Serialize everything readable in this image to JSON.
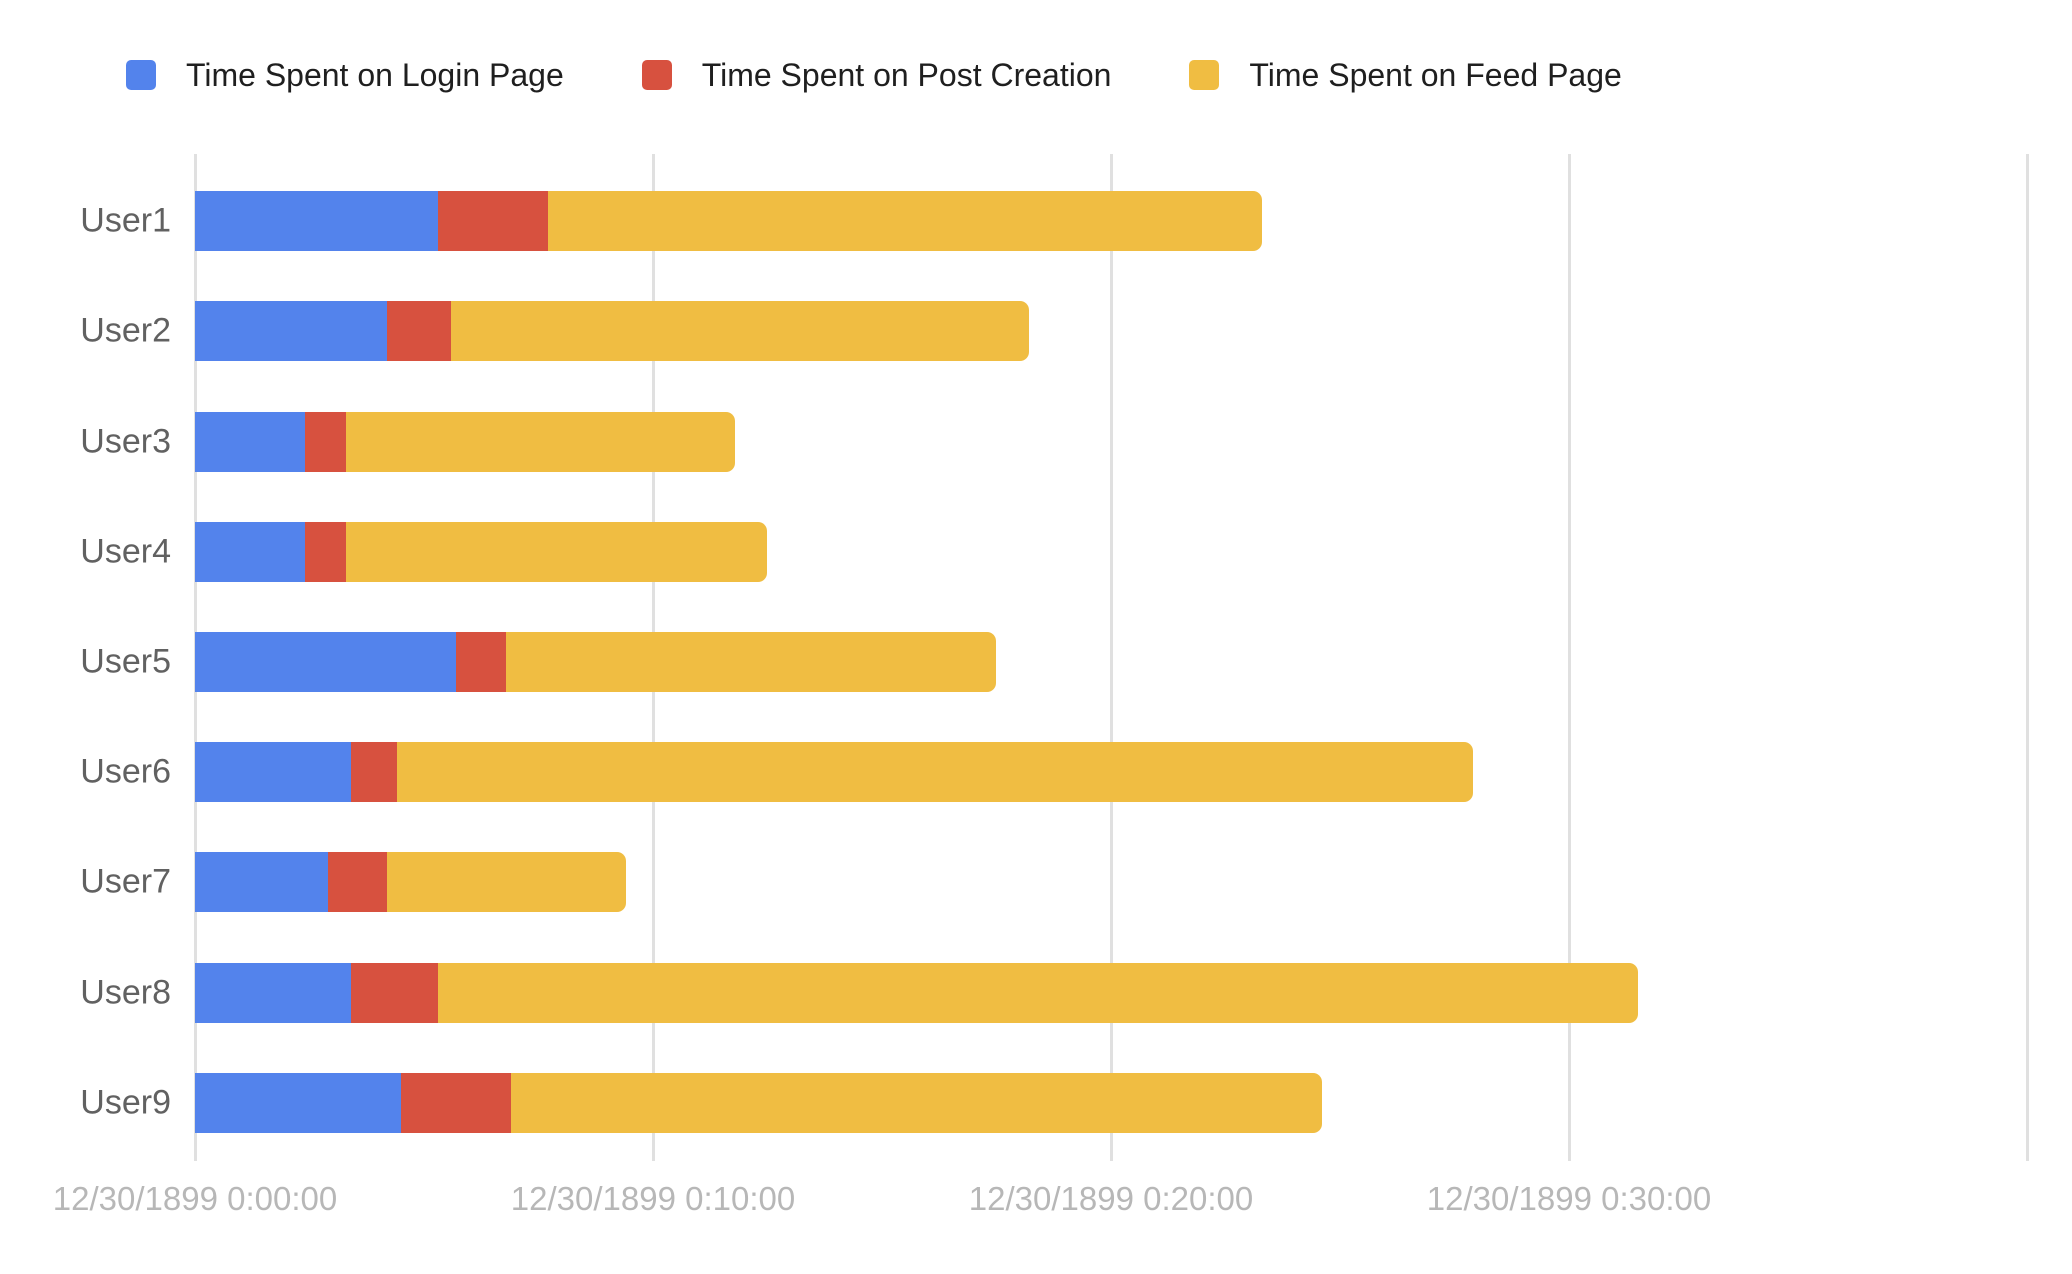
{
  "page": {
    "background": "#FFFFFF"
  },
  "chart_data": {
    "type": "bar",
    "orientation": "horizontal",
    "stacked": true,
    "title": "",
    "legend_position": "top",
    "legend_text_color": "#1F1F1F",
    "category_label_color": "#616161",
    "categories": [
      "User1",
      "User2",
      "User3",
      "User4",
      "User5",
      "User6",
      "User7",
      "User8",
      "User9"
    ],
    "series": [
      {
        "name": "Time Spent on Login Page",
        "color": "#5383EC",
        "values_minutes": [
          5.3,
          4.2,
          2.4,
          2.4,
          5.7,
          3.4,
          2.9,
          3.4,
          4.5
        ]
      },
      {
        "name": "Time Spent on Post Creation",
        "color": "#D7513F",
        "values_minutes": [
          2.4,
          1.4,
          0.9,
          0.9,
          1.1,
          1.0,
          1.3,
          1.9,
          2.4
        ]
      },
      {
        "name": "Time Spent on Feed Page",
        "color": "#F0BD42",
        "values_minutes": [
          15.6,
          12.6,
          8.5,
          9.2,
          10.7,
          23.5,
          5.2,
          26.2,
          17.7
        ]
      }
    ],
    "x_axis": {
      "tick_labels": [
        "12/30/1899 0:00:00",
        "12/30/1899 0:10:00",
        "12/30/1899 0:20:00",
        "12/30/1899 0:30:00"
      ],
      "tick_values_minutes": [
        0,
        10,
        20,
        30
      ],
      "gridline_minutes": [
        0,
        10,
        20,
        30,
        40
      ],
      "max_minutes": 40,
      "label_color": "#B7B7B7",
      "gridline_color": "#E0E0E0",
      "grid": true
    }
  }
}
